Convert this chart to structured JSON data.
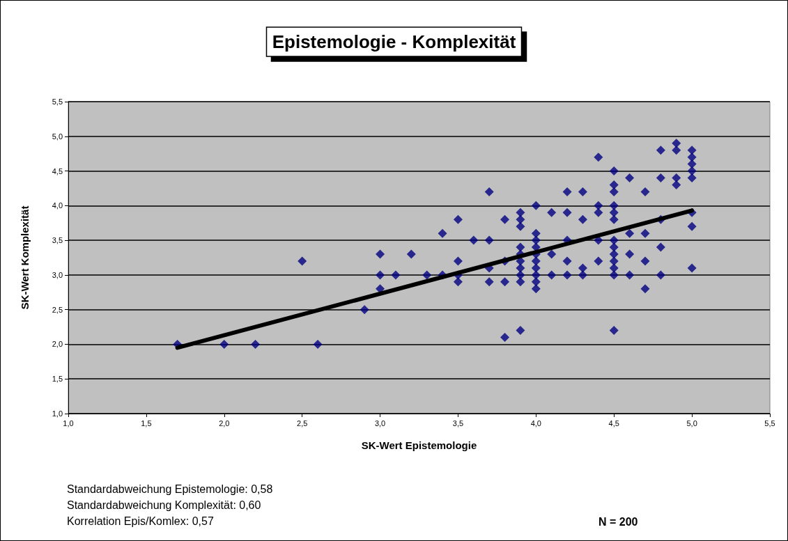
{
  "chart_data": {
    "type": "scatter",
    "title": "Epistemologie - Komplexität",
    "xlabel": "SK-Wert Epistemologie",
    "ylabel": "SK-Wert Komplexität",
    "annotations": [
      "Standardabweichung Epistemologie: 0,58",
      "Standardabweichung Komplexität: 0,60",
      "Korrelation Epis/Komlex: 0,57",
      "N = 200"
    ],
    "xlim": [
      1,
      5.5
    ],
    "ylim": [
      1,
      5.5
    ],
    "xticks": [
      {
        "value": 1,
        "label": "1,0"
      },
      {
        "value": 1.5,
        "label": "1,5"
      },
      {
        "value": 2,
        "label": "2,0"
      },
      {
        "value": 2.5,
        "label": "2,5"
      },
      {
        "value": 3,
        "label": "3,0"
      },
      {
        "value": 3.5,
        "label": "3,5"
      },
      {
        "value": 4,
        "label": "4,0"
      },
      {
        "value": 4.5,
        "label": "4,5"
      },
      {
        "value": 5,
        "label": "5,0"
      },
      {
        "value": 5.5,
        "label": "5,5"
      }
    ],
    "yticks": [
      {
        "value": 1,
        "label": "1,0"
      },
      {
        "value": 1.5,
        "label": "1,5"
      },
      {
        "value": 2,
        "label": "2,0"
      },
      {
        "value": 2.5,
        "label": "2,5"
      },
      {
        "value": 3,
        "label": "3,0"
      },
      {
        "value": 3.5,
        "label": "3,5"
      },
      {
        "value": 4,
        "label": "4,0"
      },
      {
        "value": 4.5,
        "label": "4,5"
      },
      {
        "value": 5,
        "label": "5,0"
      },
      {
        "value": 5.5,
        "label": "5,5"
      }
    ],
    "grid": "y",
    "series": [
      {
        "color": "#000080",
        "marker": "diamond",
        "x": [
          1.7,
          2.2,
          3.2,
          3.3,
          3.4,
          3.4,
          3.5,
          3.5,
          3.5,
          3.5,
          3.9,
          3.9,
          3.9,
          3.9,
          3.9,
          3.9,
          3.9,
          3.9,
          3.9,
          3.9,
          4.0,
          4.0,
          4.0,
          4.0,
          4.0,
          4.0,
          4.0,
          4.0,
          4.0,
          4.0,
          4.4,
          4.4,
          4.4,
          4.4,
          4.4,
          4.5,
          4.5,
          4.5,
          4.5,
          4.5,
          4.5,
          4.5,
          4.5,
          4.5,
          4.5,
          4.5,
          4.5,
          4.5,
          4.9,
          4.9,
          4.9,
          4.9,
          5.0,
          5.0,
          5.0,
          5.0,
          5.0,
          5.0,
          5.0,
          5.0,
          2.0,
          2.5,
          2.6,
          2.9,
          3.0,
          3.0,
          3.0,
          3.1,
          3.6,
          3.7,
          3.7,
          3.7,
          3.7,
          3.8,
          3.8,
          3.8,
          3.8,
          4.1,
          4.1,
          4.1,
          4.2,
          4.2,
          4.2,
          4.2,
          4.2,
          4.3,
          4.3,
          4.3,
          4.3,
          4.6,
          4.6,
          4.6,
          4.6,
          4.7,
          4.7,
          4.7,
          4.7,
          4.8,
          4.8,
          4.8,
          4.8,
          4.8
        ],
        "values": [
          2.0,
          2.0,
          3.3,
          3.0,
          3.6,
          3.0,
          3.8,
          3.2,
          3.0,
          2.9,
          3.9,
          3.8,
          3.7,
          3.4,
          3.3,
          3.2,
          3.1,
          3.0,
          2.9,
          2.2,
          4.0,
          3.6,
          3.5,
          3.4,
          3.3,
          3.2,
          3.1,
          3.0,
          2.9,
          2.8,
          4.7,
          4.0,
          3.9,
          3.5,
          3.2,
          4.5,
          4.3,
          4.2,
          4.0,
          3.9,
          3.8,
          3.5,
          3.4,
          3.3,
          3.2,
          3.1,
          3.0,
          2.2,
          4.9,
          4.8,
          4.4,
          4.3,
          4.8,
          4.7,
          4.6,
          4.5,
          4.4,
          3.9,
          3.7,
          3.1,
          2.0,
          3.2,
          2.0,
          2.5,
          3.3,
          3.0,
          2.8,
          3.0,
          3.5,
          4.2,
          3.5,
          3.1,
          2.9,
          3.8,
          3.2,
          2.9,
          2.1,
          3.9,
          3.3,
          3.0,
          4.2,
          3.9,
          3.5,
          3.2,
          3.0,
          4.2,
          3.8,
          3.1,
          3.0,
          4.4,
          3.6,
          3.3,
          3.0,
          4.2,
          3.6,
          3.2,
          2.8,
          4.8,
          4.4,
          3.8,
          3.4,
          3.0
        ]
      },
      {
        "type": "line",
        "marker": "none",
        "color": "#000000",
        "x": [
          1.7,
          5.0
        ],
        "values": [
          1.95,
          3.93
        ]
      }
    ]
  }
}
